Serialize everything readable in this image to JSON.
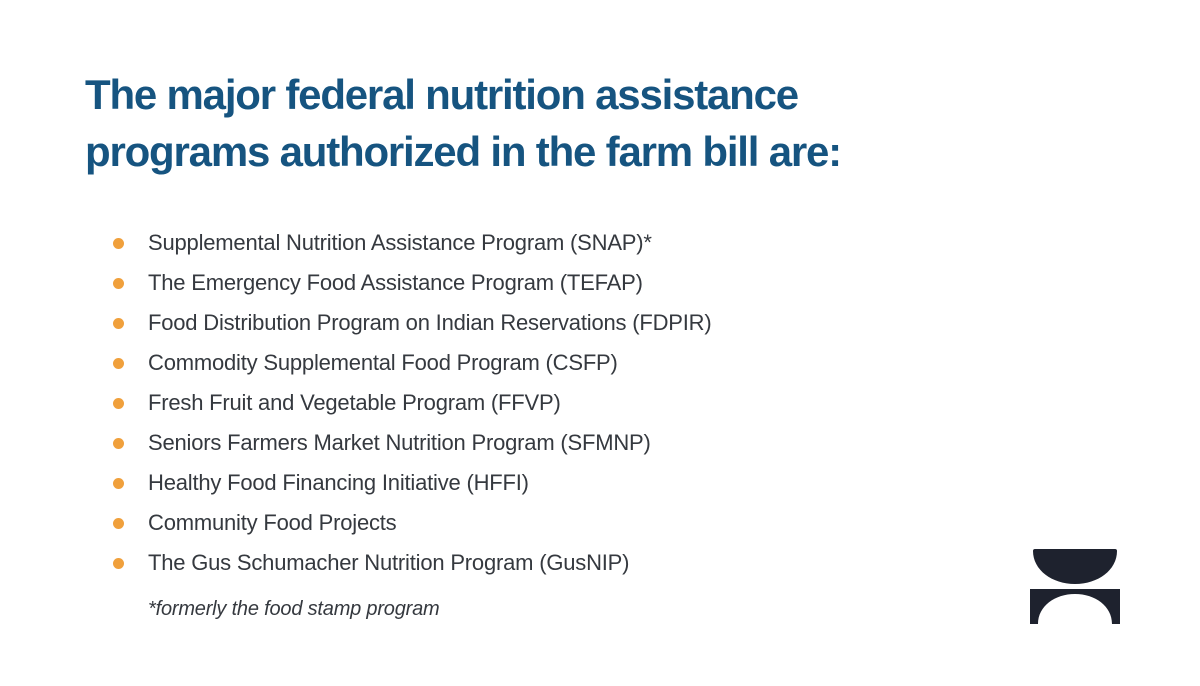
{
  "slide": {
    "title": "The major federal nutrition assistance programs authorized in the farm bill are:",
    "title_lines": [
      "The major federal nutrition assistance",
      "programs authorized in the farm bill are:"
    ],
    "bullets": [
      "Supplemental Nutrition Assistance Program (SNAP)*",
      "The Emergency Food Assistance Program (TEFAP)",
      "Food Distribution Program on Indian Reservations (FDPIR)",
      "Commodity Supplemental Food Program (CSFP)",
      "Fresh Fruit and Vegetable Program (FFVP)",
      "Seniors Farmers Market Nutrition Program (SFMNP)",
      "Healthy Food Financing Initiative (HFFI)",
      "Community Food Projects",
      "The Gus Schumacher Nutrition Program (GusNIP)"
    ],
    "footnote": "*formerly the food stamp program",
    "colors": {
      "background": "#FFFFFF",
      "title": "#165480",
      "body_text": "#35393F",
      "bullet": "#F0A03C",
      "logo": "#1E222E"
    },
    "logo": "bowl-and-arch-logo"
  }
}
